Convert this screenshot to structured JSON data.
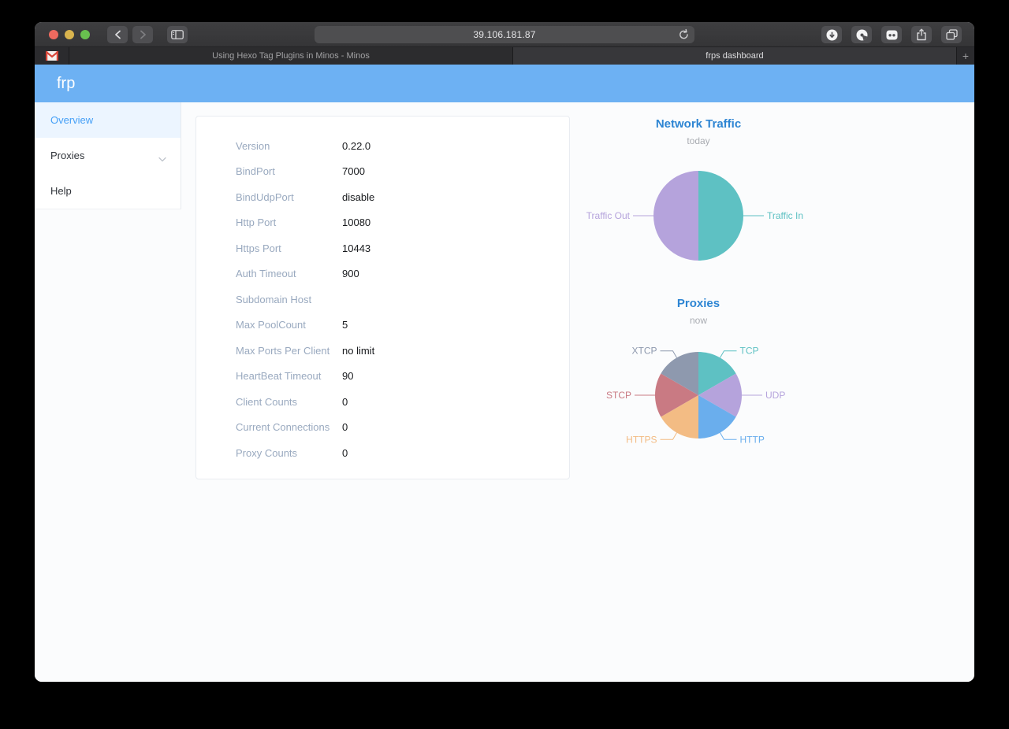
{
  "browser": {
    "window_controls": [
      "close",
      "minimize",
      "zoom"
    ],
    "traffic_colors": {
      "close": "#ed6a5f",
      "minimize": "#d9b44e",
      "zoom": "#68c04f"
    },
    "nav": {
      "back": "back-button",
      "forward": "forward-button",
      "sidebar_toggle": "sidebar-toggle-button"
    },
    "url": "39.106.181.87",
    "toolbar_right": [
      "downloads-button",
      "content-blocker-button",
      "extension-button",
      "share-button",
      "tab-overview-button"
    ],
    "tabs": [
      {
        "label": "",
        "pinned": true,
        "icon": "gmail-icon"
      },
      {
        "label": "Using Hexo Tag Plugins in Minos - Minos",
        "active": false
      },
      {
        "label": "frps dashboard",
        "active": true
      }
    ],
    "new_tab_label": "+"
  },
  "app": {
    "logo": "frp",
    "header_color": "#6db1f3",
    "sidebar": {
      "items": [
        {
          "label": "Overview",
          "active": true
        },
        {
          "label": "Proxies",
          "active": false,
          "expandable": true
        },
        {
          "label": "Help",
          "active": false
        }
      ]
    }
  },
  "overview": {
    "rows": [
      {
        "label": "Version",
        "value": "0.22.0"
      },
      {
        "label": "BindPort",
        "value": "7000"
      },
      {
        "label": "BindUdpPort",
        "value": "disable"
      },
      {
        "label": "Http Port",
        "value": "10080"
      },
      {
        "label": "Https Port",
        "value": "10443"
      },
      {
        "label": "Auth Timeout",
        "value": "900"
      },
      {
        "label": "Subdomain Host",
        "value": ""
      },
      {
        "label": "Max PoolCount",
        "value": "5"
      },
      {
        "label": "Max Ports Per Client",
        "value": "no limit"
      },
      {
        "label": "HeartBeat Timeout",
        "value": "90"
      },
      {
        "label": "Client Counts",
        "value": "0"
      },
      {
        "label": "Current Connections",
        "value": "0"
      },
      {
        "label": "Proxy Counts",
        "value": "0"
      }
    ]
  },
  "chart_data": [
    {
      "type": "pie",
      "title": "Network Traffic",
      "subtitle": "today",
      "categories": [
        "Traffic In",
        "Traffic Out"
      ],
      "values": [
        50,
        50
      ],
      "colors": [
        "#5ec1c3",
        "#b5a3dc"
      ],
      "radius": 57,
      "legend_position": "none",
      "labels": "outside-with-connector"
    },
    {
      "type": "pie",
      "title": "Proxies",
      "subtitle": "now",
      "categories": [
        "TCP",
        "UDP",
        "HTTP",
        "HTTPS",
        "STCP",
        "XTCP"
      ],
      "values": [
        16.7,
        16.7,
        16.7,
        16.7,
        16.7,
        16.7
      ],
      "colors": [
        "#5ec1c3",
        "#b5a3dc",
        "#6aaeed",
        "#f3bc84",
        "#c97a83",
        "#8e99ae"
      ],
      "radius": 55,
      "legend_position": "none",
      "labels": "outside-with-connector"
    }
  ]
}
